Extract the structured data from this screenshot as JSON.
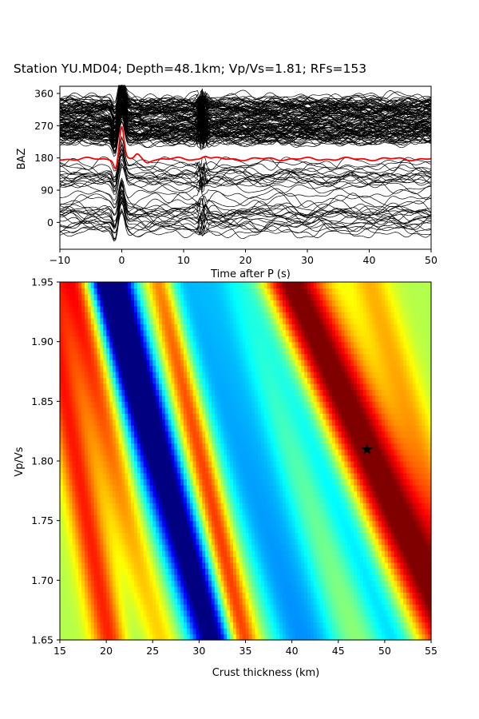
{
  "figure": {
    "title": "Station YU.MD04; Depth=48.1km; Vp/Vs=1.81; RFs=153"
  },
  "chart_data": [
    {
      "type": "line",
      "ylabel": "BAZ",
      "xlabel": "Time after P (s)",
      "xlim": [
        -10,
        50
      ],
      "ylim": [
        -75,
        380
      ],
      "xticks": [
        -10,
        0,
        10,
        20,
        30,
        40,
        50
      ],
      "yticks": [
        0,
        90,
        180,
        270,
        360
      ],
      "grid": false,
      "traces": {
        "count": 153,
        "color": "#000000",
        "description_of_baz_range": [
          -30,
          345
        ]
      },
      "stack_line": {
        "color": "#ff0000",
        "baseline": 180,
        "peaks": [
          {
            "t": 0.0,
            "v": 270
          },
          {
            "t": -1.0,
            "v": 155
          }
        ]
      }
    },
    {
      "type": "heatmap",
      "xlabel": "Crust thickness (km)",
      "ylabel": "Vp/Vs",
      "xlim": [
        15,
        55
      ],
      "ylim": [
        1.65,
        1.95
      ],
      "xticks": [
        15,
        20,
        25,
        30,
        35,
        40,
        45,
        50,
        55
      ],
      "yticks": [
        1.65,
        1.7,
        1.75,
        1.8,
        1.85,
        1.9,
        1.95
      ],
      "colormap": "jet",
      "grid": false,
      "max_marker": {
        "x": 48.1,
        "y": 1.81,
        "symbol": "star"
      }
    }
  ]
}
